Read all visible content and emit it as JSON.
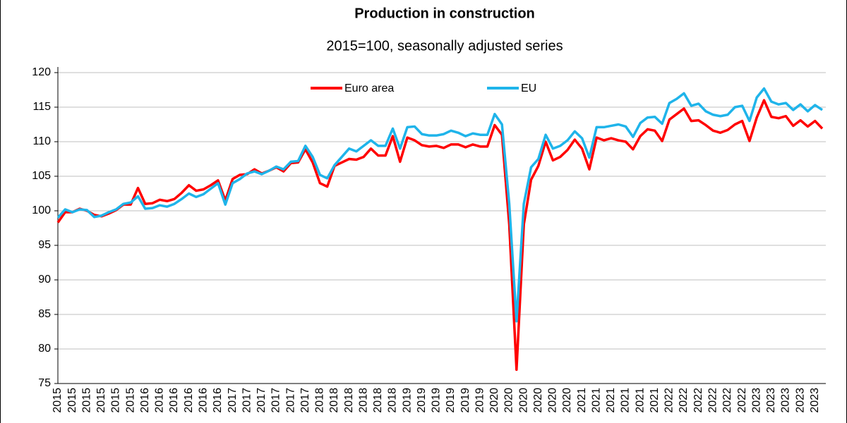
{
  "chart_data": {
    "type": "line",
    "title": "Production in construction",
    "subtitle": "2015=100, seasonally adjusted series",
    "categories": [
      "2015",
      null,
      "2015",
      null,
      "2015",
      null,
      "2015",
      null,
      "2015",
      null,
      "2015",
      null,
      "2016",
      null,
      "2016",
      null,
      "2016",
      null,
      "2016",
      null,
      "2016",
      null,
      "2016",
      null,
      "2017",
      null,
      "2017",
      null,
      "2017",
      null,
      "2017",
      null,
      "2017",
      null,
      "2017",
      null,
      "2018",
      null,
      "2018",
      null,
      "2018",
      null,
      "2018",
      null,
      "2018",
      null,
      "2018",
      null,
      "2019",
      null,
      "2019",
      null,
      "2019",
      null,
      "2019",
      null,
      "2019",
      null,
      "2019",
      null,
      "2020",
      null,
      "2020",
      null,
      "2020",
      null,
      "2020",
      null,
      "2020",
      null,
      "2020",
      null,
      "2021",
      null,
      "2021",
      null,
      "2021",
      null,
      "2021",
      null,
      "2021",
      null,
      "2021",
      null,
      "2022",
      null,
      "2022",
      null,
      "2022",
      null,
      "2022",
      null,
      "2022",
      null,
      "2022",
      null,
      "2023",
      null,
      "2023",
      null,
      "2023",
      null,
      "2023",
      null,
      "2023",
      null
    ],
    "series": [
      {
        "name": "Euro area",
        "color": "#ff0000",
        "values": [
          98.3,
          99.8,
          99.8,
          100.3,
          100.0,
          99.4,
          99.2,
          99.6,
          100.1,
          100.9,
          100.9,
          103.3,
          101.0,
          101.1,
          101.6,
          101.4,
          101.7,
          102.6,
          103.7,
          102.9,
          103.1,
          103.7,
          104.4,
          101.5,
          104.6,
          105.2,
          105.3,
          106.0,
          105.4,
          105.8,
          106.3,
          105.7,
          106.9,
          107.0,
          108.9,
          107.0,
          104.0,
          103.5,
          106.5,
          107.0,
          107.5,
          107.4,
          107.8,
          109.0,
          108.0,
          108.0,
          110.8,
          107.1,
          110.6,
          110.2,
          109.5,
          109.3,
          109.4,
          109.1,
          109.6,
          109.6,
          109.2,
          109.6,
          109.3,
          109.3,
          112.4,
          111.0,
          98.0,
          77.0,
          98.0,
          104.5,
          106.5,
          110.0,
          107.3,
          107.8,
          108.8,
          110.3,
          109.0,
          106.0,
          110.6,
          110.2,
          110.5,
          110.2,
          110.0,
          108.9,
          110.8,
          111.8,
          111.6,
          110.1,
          113.2,
          114.0,
          114.8,
          113.0,
          113.1,
          112.4,
          111.6,
          111.3,
          111.7,
          112.5,
          113.0,
          110.1,
          113.5,
          116.0,
          113.6,
          113.4,
          113.7,
          112.3,
          113.1,
          112.2,
          113.0,
          111.9
        ]
      },
      {
        "name": "EU",
        "color": "#1fb4ea",
        "values": [
          99.0,
          100.2,
          99.8,
          100.2,
          100.1,
          99.1,
          99.3,
          99.8,
          100.2,
          101.0,
          101.2,
          102.1,
          100.3,
          100.4,
          100.8,
          100.6,
          101.0,
          101.7,
          102.5,
          102.0,
          102.4,
          103.2,
          104.0,
          100.9,
          104.0,
          104.6,
          105.4,
          105.7,
          105.3,
          105.8,
          106.4,
          106.0,
          107.1,
          107.2,
          109.4,
          107.8,
          105.2,
          104.7,
          106.6,
          107.8,
          109.0,
          108.6,
          109.4,
          110.2,
          109.4,
          109.4,
          111.9,
          109.0,
          112.1,
          112.2,
          111.1,
          110.9,
          110.9,
          111.1,
          111.6,
          111.3,
          110.8,
          111.2,
          111.0,
          111.0,
          114.0,
          112.5,
          101.0,
          84.0,
          101.0,
          106.3,
          107.5,
          111.0,
          109.0,
          109.4,
          110.2,
          111.5,
          110.5,
          107.7,
          112.1,
          112.1,
          112.3,
          112.5,
          112.2,
          110.7,
          112.7,
          113.5,
          113.6,
          112.6,
          115.6,
          116.2,
          117.0,
          115.2,
          115.5,
          114.4,
          113.9,
          113.7,
          113.9,
          115.0,
          115.2,
          113.0,
          116.4,
          117.7,
          115.8,
          115.4,
          115.6,
          114.6,
          115.4,
          114.4,
          115.3,
          114.6
        ]
      }
    ],
    "ylim": [
      75,
      120
    ],
    "yticks": [
      75,
      80,
      85,
      90,
      95,
      100,
      105,
      110,
      115,
      120
    ],
    "grid": true,
    "legend": "upper center"
  }
}
